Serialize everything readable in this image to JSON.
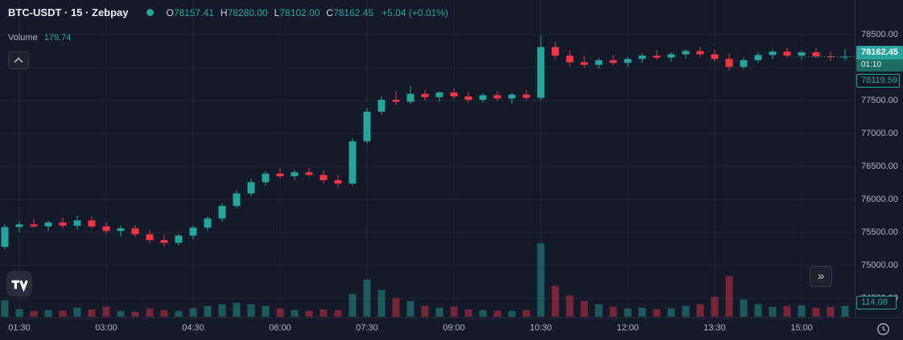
{
  "legend": {
    "symbol_title": "BTC-USDT · 15 · Zebpay",
    "ohlc": {
      "o_label": "O",
      "o": "78157.41",
      "h_label": "H",
      "h": "78280.00",
      "l_label": "L",
      "l": "78102.00",
      "c_label": "C",
      "c": "78162.45",
      "change": "+5.04 (+0.01%)"
    },
    "volume_label": "Volume",
    "volume_value": "179.74"
  },
  "price_axis": {
    "labels": [
      "78500.00",
      "78000.00",
      "77500.00",
      "77000.00",
      "76500.00",
      "76000.00",
      "75500.00",
      "75000.00",
      "74500.00"
    ],
    "last_price_badge": {
      "price": "78162.45",
      "countdown": "01:10"
    },
    "secondary_price_label": "78119.59",
    "volume_axis_label": "114.08"
  },
  "time_axis": {
    "labels": [
      "01:30",
      "03:00",
      "04:30",
      "06:00",
      "07:30",
      "09:00",
      "10:30",
      "12:00",
      "13:30",
      "15:00"
    ]
  },
  "buttons": {
    "go_to_realtime": "»"
  },
  "colors": {
    "background": "#151a2b",
    "up": "#26a69a",
    "down": "#f23645",
    "axis_text": "#b2b5be",
    "badge_green": "#26a69a"
  },
  "chart_data": {
    "type": "candlestick",
    "symbol": "BTC-USDT",
    "interval": "15",
    "exchange": "Zebpay",
    "title": "BTC-USDT · 15 · Zebpay",
    "ohlc_current": {
      "open": 78157.41,
      "high": 78280.0,
      "low": 78102.0,
      "close": 78162.45,
      "change": 5.04,
      "change_pct": 0.01
    },
    "secondary_price_line": 78119.59,
    "ylim": [
      74207,
      79024
    ],
    "price_gridlines": [
      78500,
      78000,
      77500,
      77000,
      76500,
      76000,
      75500,
      75000,
      74500
    ],
    "time_gridline_indices": [
      1,
      7,
      13,
      19,
      25,
      31,
      37,
      43,
      49,
      55
    ],
    "grid": true,
    "legend_position": "top-left",
    "volume_scale_max": 185,
    "candles_format": [
      "time",
      "open",
      "high",
      "low",
      "close",
      "volume_relative"
    ],
    "candles": [
      [
        "01:15",
        75280,
        75620,
        75240,
        75580,
        40
      ],
      [
        "01:30",
        75580,
        75660,
        75500,
        75620,
        18
      ],
      [
        "01:45",
        75620,
        75700,
        75560,
        75590,
        14
      ],
      [
        "02:00",
        75590,
        75680,
        75520,
        75650,
        16
      ],
      [
        "02:15",
        75650,
        75720,
        75560,
        75600,
        15
      ],
      [
        "02:30",
        75600,
        75760,
        75540,
        75680,
        22
      ],
      [
        "02:45",
        75680,
        75740,
        75560,
        75590,
        18
      ],
      [
        "03:00",
        75590,
        75650,
        75480,
        75520,
        24
      ],
      [
        "03:15",
        75520,
        75600,
        75440,
        75560,
        14
      ],
      [
        "03:30",
        75560,
        75610,
        75430,
        75470,
        12
      ],
      [
        "03:45",
        75470,
        75540,
        75330,
        75380,
        20
      ],
      [
        "04:00",
        75380,
        75470,
        75290,
        75340,
        16
      ],
      [
        "04:15",
        75340,
        75480,
        75300,
        75450,
        14
      ],
      [
        "04:30",
        75450,
        75600,
        75400,
        75570,
        20
      ],
      [
        "04:45",
        75570,
        75740,
        75520,
        75710,
        26
      ],
      [
        "05:00",
        75710,
        75940,
        75660,
        75900,
        30
      ],
      [
        "05:15",
        75900,
        76140,
        75860,
        76090,
        34
      ],
      [
        "05:30",
        76090,
        76310,
        76050,
        76260,
        30
      ],
      [
        "05:45",
        76260,
        76430,
        76210,
        76390,
        26
      ],
      [
        "06:00",
        76390,
        76470,
        76310,
        76350,
        20
      ],
      [
        "06:15",
        76350,
        76450,
        76290,
        76410,
        16
      ],
      [
        "06:30",
        76410,
        76480,
        76330,
        76370,
        14
      ],
      [
        "06:45",
        76370,
        76440,
        76240,
        76290,
        18
      ],
      [
        "07:00",
        76290,
        76370,
        76190,
        76240,
        16
      ],
      [
        "07:15",
        76240,
        76930,
        76210,
        76880,
        55
      ],
      [
        "07:30",
        76880,
        77380,
        76840,
        77330,
        90
      ],
      [
        "07:45",
        77330,
        77560,
        77280,
        77510,
        65
      ],
      [
        "08:00",
        77510,
        77640,
        77430,
        77480,
        45
      ],
      [
        "08:15",
        77480,
        77720,
        77440,
        77600,
        38
      ],
      [
        "08:30",
        77600,
        77660,
        77500,
        77550,
        26
      ],
      [
        "08:45",
        77550,
        77640,
        77480,
        77620,
        22
      ],
      [
        "09:00",
        77620,
        77680,
        77520,
        77560,
        24
      ],
      [
        "09:15",
        77560,
        77630,
        77470,
        77510,
        18
      ],
      [
        "09:30",
        77510,
        77610,
        77460,
        77580,
        16
      ],
      [
        "09:45",
        77580,
        77640,
        77490,
        77530,
        15
      ],
      [
        "10:00",
        77530,
        77620,
        77450,
        77590,
        14
      ],
      [
        "10:15",
        77590,
        77660,
        77500,
        77540,
        16
      ],
      [
        "10:30",
        77540,
        78480,
        77500,
        78310,
        178
      ],
      [
        "10:45",
        78310,
        78390,
        78120,
        78180,
        75
      ],
      [
        "11:00",
        78180,
        78260,
        78020,
        78080,
        52
      ],
      [
        "11:15",
        78080,
        78180,
        77990,
        78040,
        38
      ],
      [
        "11:30",
        78040,
        78150,
        77980,
        78110,
        30
      ],
      [
        "11:45",
        78110,
        78190,
        78030,
        78070,
        24
      ],
      [
        "12:00",
        78070,
        78160,
        78010,
        78130,
        20
      ],
      [
        "12:15",
        78130,
        78220,
        78070,
        78180,
        22
      ],
      [
        "12:30",
        78180,
        78260,
        78110,
        78150,
        18
      ],
      [
        "12:45",
        78150,
        78230,
        78090,
        78200,
        20
      ],
      [
        "13:00",
        78200,
        78280,
        78130,
        78250,
        26
      ],
      [
        "13:15",
        78250,
        78310,
        78160,
        78200,
        30
      ],
      [
        "13:30",
        78200,
        78270,
        78090,
        78130,
        48
      ],
      [
        "13:45",
        78130,
        78210,
        77960,
        78010,
        98
      ],
      [
        "14:00",
        78010,
        78150,
        77970,
        78110,
        42
      ],
      [
        "14:15",
        78110,
        78230,
        78070,
        78190,
        30
      ],
      [
        "14:30",
        78190,
        78280,
        78130,
        78240,
        24
      ],
      [
        "14:45",
        78240,
        78300,
        78150,
        78180,
        26
      ],
      [
        "15:00",
        78180,
        78260,
        78120,
        78230,
        28
      ],
      [
        "15:15",
        78230,
        78290,
        78150,
        78170,
        22
      ],
      [
        "15:30",
        78170,
        78240,
        78100,
        78157,
        24
      ],
      [
        "15:45",
        78157.41,
        78280,
        78102,
        78162.45,
        26
      ]
    ]
  }
}
